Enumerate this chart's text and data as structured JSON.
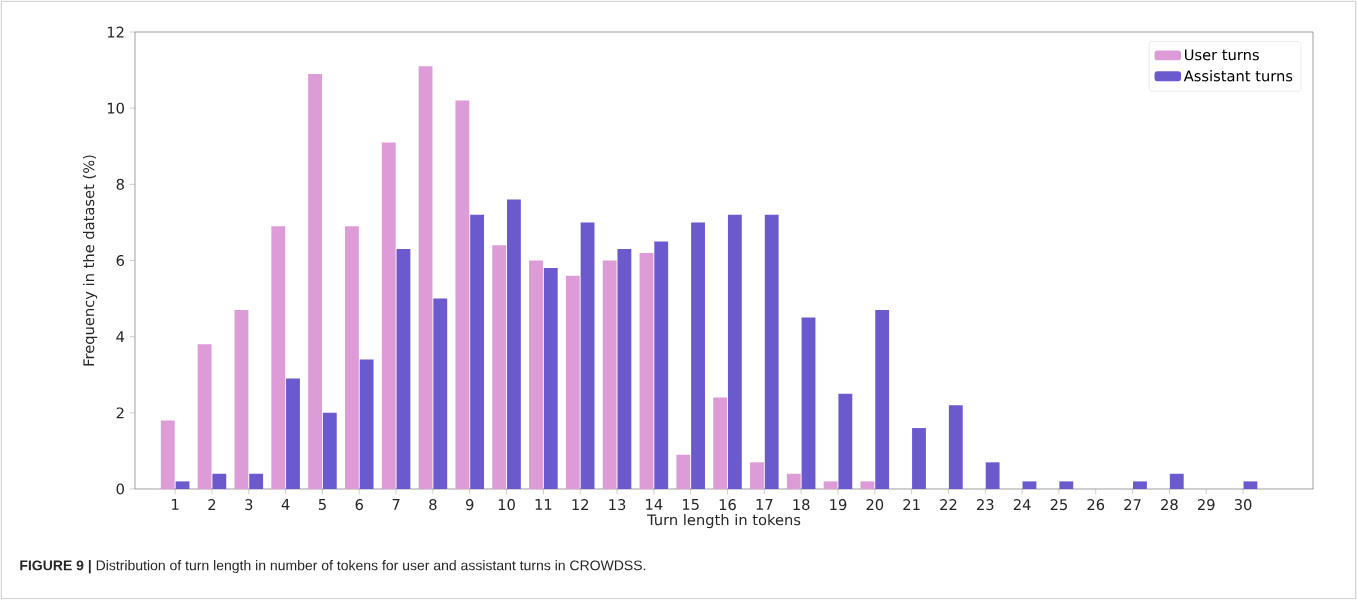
{
  "chart_data": {
    "type": "bar",
    "xlabel": "Turn length in tokens",
    "ylabel": "Frequency in the dataset (%)",
    "categories": [
      "1",
      "2",
      "3",
      "4",
      "5",
      "6",
      "7",
      "8",
      "9",
      "10",
      "11",
      "12",
      "13",
      "14",
      "15",
      "16",
      "17",
      "18",
      "19",
      "20",
      "21",
      "22",
      "23",
      "24",
      "25",
      "26",
      "27",
      "28",
      "29",
      "30"
    ],
    "series": [
      {
        "name": "User turns",
        "color": "#dd9cd8",
        "values": [
          1.8,
          3.8,
          4.7,
          6.9,
          10.9,
          6.9,
          9.1,
          11.1,
          10.2,
          6.4,
          6.0,
          5.6,
          6.0,
          6.2,
          0.9,
          2.4,
          0.7,
          0.4,
          0.2,
          0.2,
          0,
          0,
          0,
          0,
          0,
          0,
          0,
          0,
          0,
          0
        ]
      },
      {
        "name": "Assistant turns",
        "color": "#6a5acd",
        "values": [
          0.2,
          0.4,
          0.4,
          2.9,
          2.0,
          3.4,
          6.3,
          5.0,
          7.2,
          7.6,
          5.8,
          7.0,
          6.3,
          6.5,
          7.0,
          7.2,
          7.2,
          4.5,
          2.5,
          4.7,
          1.6,
          2.2,
          0.7,
          0.2,
          0.2,
          0,
          0.2,
          0.4,
          0,
          0.2
        ]
      }
    ],
    "ylim": [
      0,
      12
    ],
    "yticks": [
      0,
      2,
      4,
      6,
      8,
      10,
      12
    ],
    "legend": "top right",
    "annotations": [
      "**FIGURE 9 |** Distribution of turn length in number of tokens for user and assistant turns in CROWDSS."
    ]
  }
}
